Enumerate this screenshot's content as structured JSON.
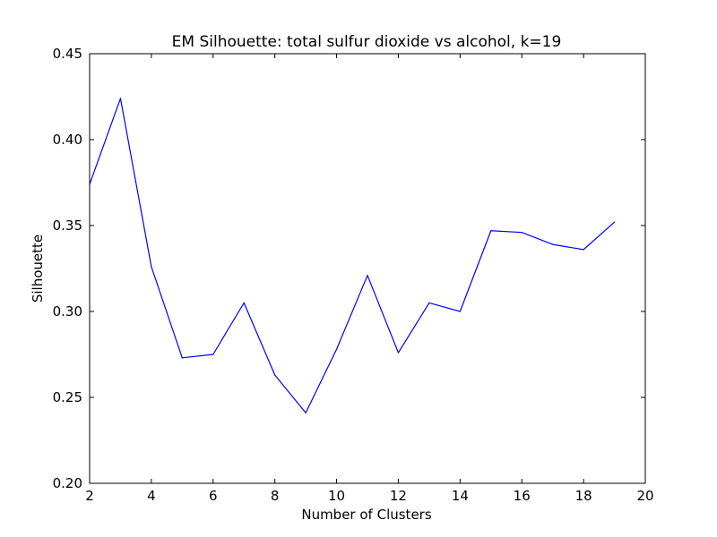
{
  "chart_data": {
    "type": "line",
    "title": "EM Silhouette: total sulfur dioxide vs alcohol, k=19",
    "xlabel": "Number of Clusters",
    "ylabel": "Silhouette",
    "xlim": [
      2,
      20
    ],
    "ylim": [
      0.2,
      0.45
    ],
    "xticks": [
      "2",
      "4",
      "6",
      "8",
      "10",
      "12",
      "14",
      "16",
      "18",
      "20"
    ],
    "yticks": [
      "0.20",
      "0.25",
      "0.30",
      "0.35",
      "0.40",
      "0.45"
    ],
    "grid": false,
    "line_color": "#0000ff",
    "series": [
      {
        "x": [
          2,
          3,
          4,
          5,
          6,
          7,
          8,
          9,
          10,
          11,
          12,
          13,
          14,
          15,
          16,
          17,
          18,
          19
        ],
        "values": [
          0.374,
          0.424,
          0.326,
          0.273,
          0.275,
          0.305,
          0.263,
          0.241,
          0.278,
          0.321,
          0.276,
          0.305,
          0.3,
          0.347,
          0.346,
          0.339,
          0.336,
          0.352
        ]
      }
    ]
  }
}
